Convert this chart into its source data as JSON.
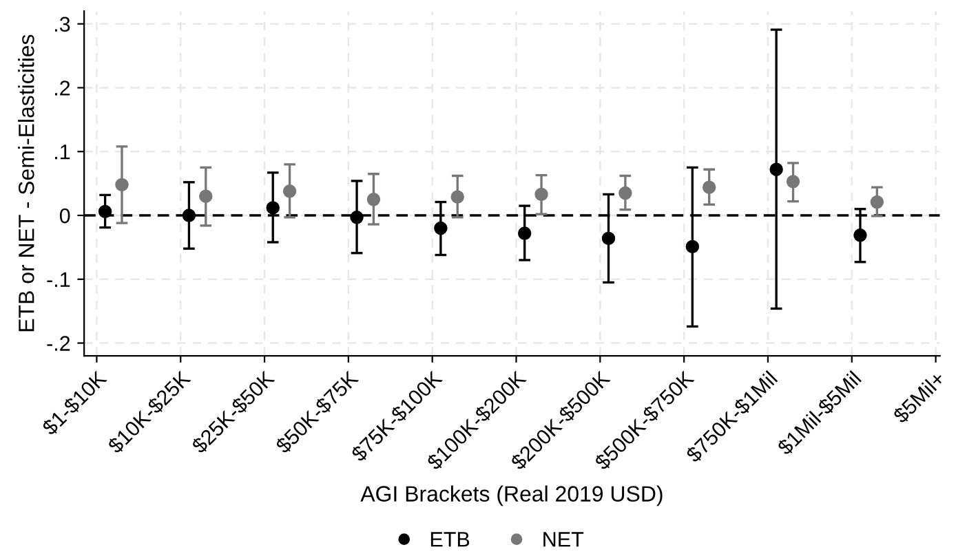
{
  "chart_data": {
    "type": "scatter",
    "xlabel": "AGI Brackets (Real 2019 USD)",
    "ylabel": "ETB or NET - Semi-Elasticities",
    "series": [
      {
        "name": "ETB",
        "color": "#000000",
        "values": [
          0.006,
          0.0,
          0.012,
          -0.003,
          -0.02,
          -0.028,
          -0.036,
          -0.049,
          0.072,
          -0.031,
          null
        ],
        "errors": [
          [
            -0.019,
            0.032
          ],
          [
            -0.052,
            0.052
          ],
          [
            -0.042,
            0.067
          ],
          [
            -0.059,
            0.054
          ],
          [
            -0.062,
            0.021
          ],
          [
            -0.07,
            0.015
          ],
          [
            -0.105,
            0.033
          ],
          [
            -0.174,
            0.075
          ],
          [
            -0.146,
            0.291
          ],
          [
            -0.073,
            0.01
          ],
          null
        ]
      },
      {
        "name": "NET",
        "color": "#777777",
        "values": [
          0.048,
          0.03,
          0.038,
          0.025,
          0.029,
          0.033,
          0.035,
          0.044,
          0.053,
          0.021,
          null
        ],
        "errors": [
          [
            -0.012,
            0.108
          ],
          [
            -0.016,
            0.075
          ],
          [
            -0.003,
            0.08
          ],
          [
            -0.014,
            0.065
          ],
          [
            -0.003,
            0.062
          ],
          [
            0.002,
            0.063
          ],
          [
            0.009,
            0.062
          ],
          [
            0.017,
            0.072
          ],
          [
            0.022,
            0.082
          ],
          [
            -0.001,
            0.044
          ],
          null
        ]
      }
    ],
    "categories": [
      "$1-$10K",
      "$10K-$25K",
      "$25K-$50K",
      "$50K-$75K",
      "$75K-$100K",
      "$100K-$200K",
      "$200K-$500K",
      "$500K-$750K",
      "$750K-$1Mil",
      "$1Mil-$5Mil",
      "$5Mil+"
    ],
    "ylim": [
      -0.22,
      0.32
    ],
    "yticks": [
      {
        "value": -0.2,
        "label": "-.2"
      },
      {
        "value": -0.1,
        "label": "-.1"
      },
      0,
      {
        "value": 0.1,
        "label": ".1"
      },
      {
        "value": 0.2,
        "label": ".2"
      },
      {
        "value": 0.3,
        "label": ".3"
      }
    ],
    "ref_lines": [
      {
        "axis": "y",
        "value": 0,
        "color": "#000000",
        "line_style": "dashed"
      }
    ],
    "grid": true,
    "legend": "bottom",
    "marker": "circle"
  }
}
